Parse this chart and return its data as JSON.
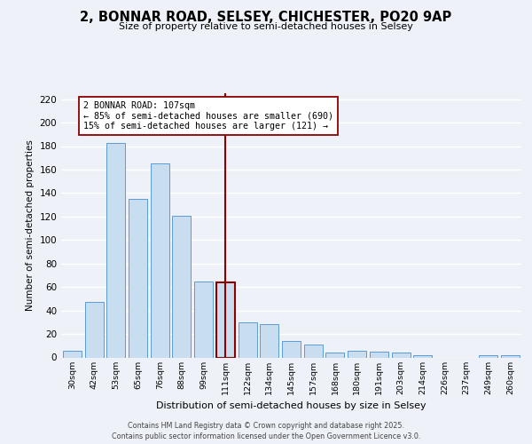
{
  "title": "2, BONNAR ROAD, SELSEY, CHICHESTER, PO20 9AP",
  "subtitle": "Size of property relative to semi-detached houses in Selsey",
  "xlabel": "Distribution of semi-detached houses by size in Selsey",
  "ylabel": "Number of semi-detached properties",
  "categories": [
    "30sqm",
    "42sqm",
    "53sqm",
    "65sqm",
    "76sqm",
    "88sqm",
    "99sqm",
    "111sqm",
    "122sqm",
    "134sqm",
    "145sqm",
    "157sqm",
    "168sqm",
    "180sqm",
    "191sqm",
    "203sqm",
    "214sqm",
    "226sqm",
    "237sqm",
    "249sqm",
    "260sqm"
  ],
  "values": [
    6,
    47,
    183,
    135,
    165,
    121,
    65,
    64,
    30,
    28,
    14,
    11,
    4,
    6,
    5,
    4,
    2,
    0,
    0,
    2,
    2
  ],
  "bar_color": "#c9ddf0",
  "bar_edge_color": "#5b9bd5",
  "highlight_bar_edge_color": "#8b0000",
  "highlight_index": 7,
  "vline_color": "#8b0000",
  "annotation_text": "2 BONNAR ROAD: 107sqm\n← 85% of semi-detached houses are smaller (690)\n15% of semi-detached houses are larger (121) →",
  "ylim": [
    0,
    225
  ],
  "yticks": [
    0,
    20,
    40,
    60,
    80,
    100,
    120,
    140,
    160,
    180,
    200,
    220
  ],
  "footer": "Contains HM Land Registry data © Crown copyright and database right 2025.\nContains public sector information licensed under the Open Government Licence v3.0.",
  "bg_color": "#eef2f8",
  "plot_bg_color": "#eef2f8"
}
